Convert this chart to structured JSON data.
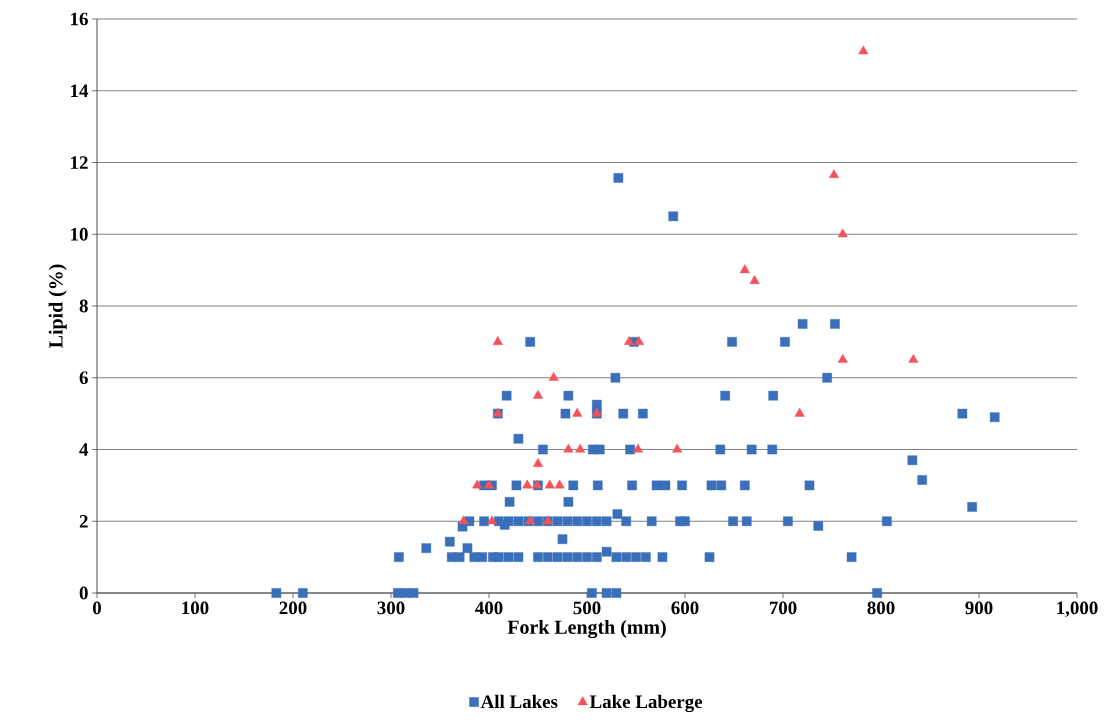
{
  "chart_data": {
    "type": "scatter",
    "xlabel": "Fork Length (mm)",
    "ylabel": "Lipid (%)",
    "xlim": [
      0,
      1000
    ],
    "ylim": [
      0,
      16
    ],
    "xticks": [
      0,
      100,
      200,
      300,
      400,
      500,
      600,
      700,
      800,
      900,
      {
        "value": 1000,
        "label": "1,000"
      }
    ],
    "yticks": [
      0,
      2,
      4,
      6,
      8,
      10,
      12,
      14,
      16
    ],
    "grid": "y",
    "legend": "bottom",
    "series": [
      {
        "name": "All Lakes",
        "color": "#3a6fba",
        "marker": "square",
        "x": [
          183,
          210,
          307,
          315,
          323,
          505,
          520,
          530,
          796,
          308,
          336,
          360,
          362,
          370,
          378,
          385,
          393,
          404,
          410,
          420,
          430,
          450,
          460,
          470,
          480,
          490,
          500,
          510,
          520,
          530,
          540,
          550,
          560,
          577,
          625,
          770,
          475,
          373,
          380,
          395,
          410,
          416,
          420,
          430,
          440,
          450,
          460,
          470,
          480,
          490,
          500,
          510,
          520,
          531,
          540,
          566,
          595,
          600,
          649,
          663,
          705,
          736,
          806,
          893,
          421,
          481,
          395,
          403,
          428,
          450,
          486,
          511,
          546,
          571,
          580,
          597,
          627,
          637,
          661,
          727,
          842,
          832,
          455,
          506,
          513,
          544,
          636,
          668,
          689,
          430,
          409,
          478,
          510,
          510,
          537,
          557,
          883,
          916,
          418,
          481,
          641,
          690,
          529,
          745,
          442,
          548,
          648,
          702,
          720,
          753,
          532,
          588
        ],
        "values": [
          0,
          0,
          0,
          0,
          0,
          0,
          0,
          0,
          0,
          1.0,
          1.25,
          1.43,
          1.0,
          1.0,
          1.25,
          1.0,
          1.0,
          1.0,
          1.0,
          1.0,
          1.0,
          1.0,
          1.0,
          1.0,
          1.0,
          1.0,
          1.0,
          1.0,
          1.15,
          1.0,
          1.0,
          1.0,
          1.0,
          1.0,
          1.0,
          1.0,
          1.5,
          1.85,
          2.0,
          2.0,
          2.0,
          1.9,
          2.0,
          2.0,
          2.0,
          2.0,
          2.0,
          2.0,
          2.0,
          2.0,
          2.0,
          2.0,
          2.0,
          2.2,
          2.0,
          2.0,
          2.0,
          2.0,
          2.0,
          2.0,
          2.0,
          1.87,
          2.0,
          2.4,
          2.54,
          2.54,
          3.0,
          3.0,
          3.0,
          3.0,
          3.0,
          3.0,
          3.0,
          3.0,
          3.0,
          3.0,
          3.0,
          3.0,
          3.0,
          3.0,
          3.15,
          3.7,
          4.0,
          4.0,
          4.0,
          4.0,
          4.0,
          4.0,
          4.0,
          4.3,
          5.0,
          5.0,
          5.0,
          5.25,
          5.0,
          5.0,
          5.0,
          4.9,
          5.5,
          5.5,
          5.5,
          5.5,
          6.0,
          6.0,
          7.0,
          7.0,
          7.0,
          7.0,
          7.5,
          7.5,
          11.57,
          10.5
        ]
      },
      {
        "name": "Lake Laberge",
        "color": "#f2545b",
        "marker": "triangle",
        "x": [
          374,
          403,
          442,
          460,
          388,
          400,
          439,
          449,
          462,
          472,
          450,
          481,
          493,
          552,
          592,
          409,
          490,
          510,
          717,
          450,
          466,
          409,
          543,
          553,
          761,
          833,
          661,
          671,
          761,
          752,
          782
        ],
        "values": [
          2.0,
          2.0,
          2.0,
          2.0,
          3.0,
          3.0,
          3.0,
          3.0,
          3.0,
          3.0,
          3.6,
          4.0,
          4.0,
          4.0,
          4.0,
          5.0,
          5.0,
          5.0,
          5.0,
          5.5,
          6.0,
          7.0,
          7.0,
          7.0,
          6.5,
          6.5,
          9.0,
          8.7,
          10.0,
          11.65,
          15.1
        ]
      }
    ]
  }
}
